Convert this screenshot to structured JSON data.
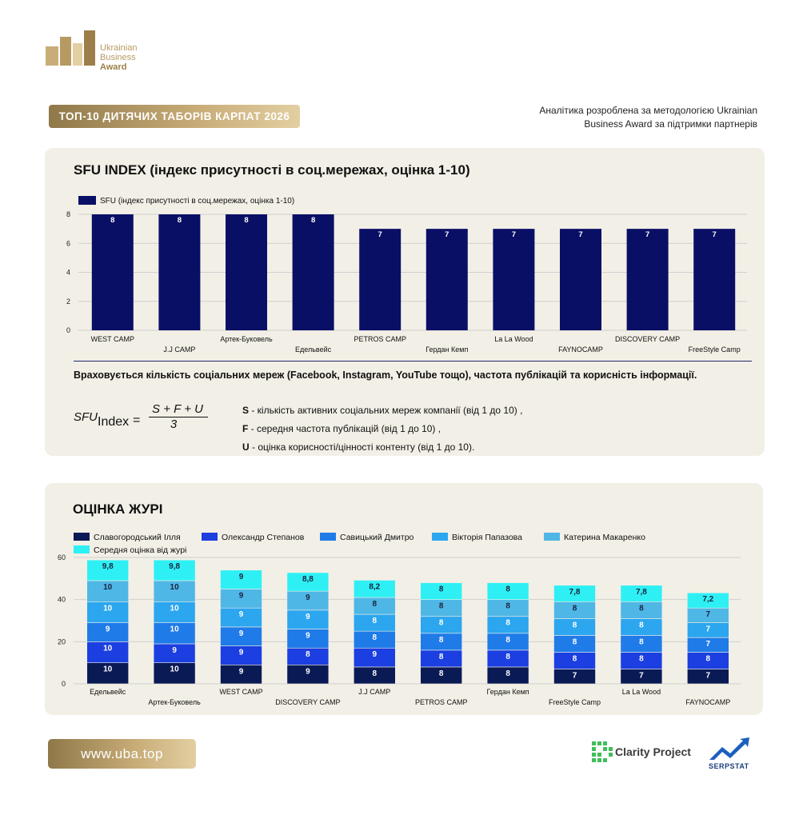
{
  "brand": {
    "line1": "Ukrainian",
    "line2": "Business",
    "line3": "Award"
  },
  "header": {
    "title": "ТОП-10 ДИТЯЧИХ ТАБОРІВ КАРПАТ 2026",
    "note": "Аналітика розроблена за методологією Ukrainian Business Award за підтримки партнерів"
  },
  "sfu": {
    "title": "SFU INDEX (індекс присутності в соц.мережах, оцінка 1-10)",
    "note": "Враховується кількість соціальних мереж (Facebook, Instagram, YouTube тощо), частота публікацій та корисність інформації.",
    "formula": {
      "lhs": "SFU",
      "sub": "Index",
      "eq": "=",
      "numerator": "S + F + U",
      "denominator": "3"
    },
    "defs": [
      {
        "key": "S",
        "text": " - кількість активних соціальних мереж компанії (від 1 до 10) ,"
      },
      {
        "key": "F",
        "text": " - середня частота публікацій (від 1 до 10) ,"
      },
      {
        "key": "U",
        "text": " - оцінка корисності/цінності контенту (від 1 до 10)."
      }
    ]
  },
  "jury": {
    "title": "ОЦІНКА ЖУРІ"
  },
  "footer": {
    "url": "www.uba.top",
    "partner1": "Clarity Project",
    "partner2": "SERPSTAT"
  },
  "colors": {
    "navy": "#0a0f66",
    "gold": "#b79a62",
    "card": "#f2efe6"
  },
  "chart_data": [
    {
      "type": "bar",
      "categories": [
        "WEST CAMP",
        "J.J CAMP",
        "Артек-Буковель",
        "Едельвейс",
        "PETROS CAMP",
        "Гердан Кемп",
        "La La Wood",
        "FAYNOCAMP",
        "DISCOVERY CAMP",
        "FreeStyle Camp"
      ],
      "series": [
        {
          "name": "SFU (індекс присутності в соц.мережах, оцінка 1-10)",
          "values": [
            8,
            8,
            8,
            8,
            7,
            7,
            7,
            7,
            7,
            7
          ],
          "color": "#0a0f66"
        }
      ],
      "ylim": [
        0,
        8
      ],
      "yticks": [
        0,
        2,
        4,
        6,
        8
      ],
      "grid": true,
      "legend": "top-left"
    },
    {
      "type": "bar",
      "stacked": true,
      "categories": [
        "Едельвейс",
        "Артек-Буковель",
        "WEST CAMP",
        "DISCOVERY CAMP",
        "J.J CAMP",
        "PETROS CAMP",
        "Гердан Кемп",
        "FreeStyle Camp",
        "La La Wood",
        "FAYNOCAMP"
      ],
      "series": [
        {
          "name": "Славогородський Ілля",
          "color": "#0a1a55",
          "values": [
            10,
            10,
            9,
            9,
            8,
            8,
            8,
            7,
            7,
            7
          ]
        },
        {
          "name": "Олександр Степанов",
          "color": "#1b3fe0",
          "values": [
            10,
            9,
            9,
            8,
            9,
            8,
            8,
            8,
            8,
            8
          ]
        },
        {
          "name": "Савицький Дмитро",
          "color": "#1f7be8",
          "values": [
            9,
            10,
            9,
            9,
            8,
            8,
            8,
            8,
            8,
            7
          ]
        },
        {
          "name": "Вікторія Папазова",
          "color": "#2ba6ef",
          "values": [
            10,
            10,
            9,
            9,
            8,
            8,
            8,
            8,
            8,
            7
          ]
        },
        {
          "name": "Катерина Макаренко",
          "color": "#4fb7e6",
          "values": [
            10,
            10,
            9,
            9,
            8,
            8,
            8,
            8,
            8,
            7
          ]
        },
        {
          "name": "Середня оцінка від журі",
          "color": "#2ef0f4",
          "values": [
            9.8,
            9.8,
            9,
            8.8,
            8.2,
            8,
            8,
            7.8,
            7.8,
            7.2
          ],
          "labels": [
            "9,8",
            "9,8",
            "9",
            "8,8",
            "8,2",
            "8",
            "8",
            "7,8",
            "7,8",
            "7,2"
          ]
        }
      ],
      "ylim": [
        0,
        60
      ],
      "yticks": [
        0,
        20,
        40,
        60
      ],
      "grid": true,
      "legend": "top"
    }
  ]
}
